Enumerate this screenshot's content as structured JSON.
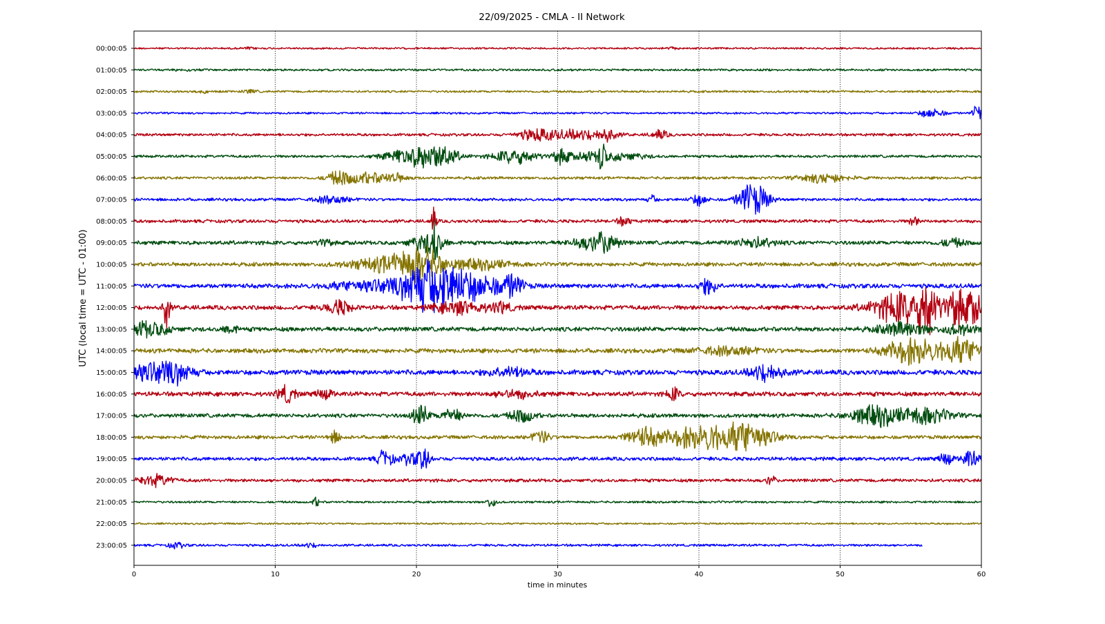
{
  "chart_data": {
    "type": "line",
    "title": "22/09/2025 - CMLA - II Network",
    "xlabel": "time in minutes",
    "ylabel": "UTC (local time = UTC - 01:00)",
    "xlim": [
      0,
      60
    ],
    "x_ticks": [
      "0",
      "10",
      "20",
      "30",
      "40",
      "50",
      "60"
    ],
    "x_tick_values": [
      0,
      10,
      20,
      30,
      40,
      50,
      60
    ],
    "grid": {
      "x": "dotted",
      "y": "off"
    },
    "series_colors": [
      "#b30010",
      "#004d0f",
      "#857400",
      "#0000ff"
    ],
    "rows": [
      {
        "label": "00:00:05",
        "amp": 0.1,
        "bursts": [
          [
            8.2,
            0.3,
            0.12
          ],
          [
            38,
            0.3,
            0.1
          ]
        ]
      },
      {
        "label": "01:00:05",
        "amp": 0.12,
        "bursts": [
          [
            3.5,
            0.5,
            0.1
          ]
        ]
      },
      {
        "label": "02:00:05",
        "amp": 0.12,
        "bursts": [
          [
            8.2,
            0.3,
            0.2
          ],
          [
            5,
            0.4,
            0.1
          ]
        ]
      },
      {
        "label": "03:00:05",
        "amp": 0.11,
        "bursts": [
          [
            56.5,
            0.6,
            0.5
          ],
          [
            59.7,
            0.2,
            1.1
          ]
        ]
      },
      {
        "label": "04:00:05",
        "amp": 0.15,
        "bursts": [
          [
            28.5,
            0.9,
            0.6
          ],
          [
            31.5,
            1.5,
            0.5
          ],
          [
            33.5,
            0.4,
            0.6
          ],
          [
            37.2,
            0.4,
            0.5
          ]
        ]
      },
      {
        "label": "05:00:05",
        "amp": 0.15,
        "bursts": [
          [
            19.5,
            1.2,
            0.8
          ],
          [
            21.5,
            1.0,
            1.1
          ],
          [
            27,
            1.0,
            0.8
          ],
          [
            30.3,
            0.5,
            0.8
          ],
          [
            32,
            0.4,
            0.5
          ],
          [
            33.1,
            0.2,
            1.8
          ],
          [
            34.5,
            1.2,
            0.4
          ]
        ]
      },
      {
        "label": "06:00:05",
        "amp": 0.15,
        "bursts": [
          [
            14.5,
            0.6,
            0.7
          ],
          [
            16.5,
            1.0,
            0.6
          ],
          [
            18.5,
            0.6,
            0.4
          ],
          [
            48.8,
            1.2,
            0.5
          ]
        ]
      },
      {
        "label": "07:00:05",
        "amp": 0.16,
        "bursts": [
          [
            14,
            0.8,
            0.4
          ],
          [
            36.7,
            0.2,
            0.4
          ],
          [
            40,
            0.4,
            0.6
          ],
          [
            43.6,
            0.6,
            1.6
          ],
          [
            44.5,
            0.5,
            0.7
          ]
        ]
      },
      {
        "label": "08:00:05",
        "amp": 0.18,
        "bursts": [
          [
            21.2,
            0.15,
            1.5
          ],
          [
            34.7,
            0.3,
            0.5
          ],
          [
            55.2,
            0.2,
            0.6
          ]
        ]
      },
      {
        "label": "09:00:05",
        "amp": 0.22,
        "bursts": [
          [
            20.8,
            0.8,
            1.0
          ],
          [
            21.3,
            0.2,
            2.0
          ],
          [
            13.5,
            0.3,
            0.5
          ],
          [
            32.5,
            1.0,
            0.7
          ],
          [
            33.5,
            0.5,
            0.8
          ],
          [
            44,
            1.0,
            0.5
          ],
          [
            58,
            0.6,
            0.4
          ]
        ]
      },
      {
        "label": "10:00:05",
        "amp": 0.22,
        "bursts": [
          [
            18.5,
            2.0,
            0.9
          ],
          [
            20.5,
            1.0,
            1.3
          ],
          [
            24.5,
            1.5,
            0.5
          ]
        ]
      },
      {
        "label": "11:00:05",
        "amp": 0.25,
        "bursts": [
          [
            21.8,
            1.4,
            2.0
          ],
          [
            20.2,
            1.0,
            1.3
          ],
          [
            24.5,
            1.5,
            1.0
          ],
          [
            26.8,
            0.5,
            1.0
          ],
          [
            40.7,
            0.4,
            0.9
          ],
          [
            17,
            2.0,
            0.6
          ]
        ]
      },
      {
        "label": "12:00:05",
        "amp": 0.25,
        "bursts": [
          [
            2.3,
            0.15,
            2.5
          ],
          [
            14.5,
            0.6,
            0.8
          ],
          [
            23,
            1.2,
            0.7
          ],
          [
            26,
            0.6,
            0.5
          ],
          [
            54.5,
            1.5,
            1.8
          ],
          [
            56.2,
            0.4,
            2.6
          ],
          [
            58.2,
            0.6,
            2.0
          ],
          [
            59.5,
            0.5,
            1.4
          ]
        ]
      },
      {
        "label": "13:00:05",
        "amp": 0.25,
        "bursts": [
          [
            1,
            1.0,
            0.8
          ],
          [
            6.8,
            0.3,
            0.6
          ],
          [
            54.5,
            1.2,
            0.7
          ],
          [
            58.5,
            0.8,
            0.5
          ]
        ]
      },
      {
        "label": "14:00:05",
        "amp": 0.25,
        "bursts": [
          [
            55,
            1.2,
            1.4
          ],
          [
            58.5,
            1.2,
            1.3
          ],
          [
            42,
            1.5,
            0.4
          ]
        ]
      },
      {
        "label": "15:00:05",
        "amp": 0.28,
        "bursts": [
          [
            1,
            1.2,
            1.0
          ],
          [
            3,
            0.8,
            0.9
          ],
          [
            44.8,
            0.8,
            0.9
          ],
          [
            26.5,
            1.0,
            0.5
          ]
        ]
      },
      {
        "label": "16:00:05",
        "amp": 0.25,
        "bursts": [
          [
            10.8,
            0.4,
            1.0
          ],
          [
            13.5,
            0.4,
            0.5
          ],
          [
            38.2,
            0.3,
            0.7
          ],
          [
            27,
            1.0,
            0.4
          ]
        ]
      },
      {
        "label": "17:00:05",
        "amp": 0.22,
        "bursts": [
          [
            20.3,
            0.4,
            1.1
          ],
          [
            22.5,
            0.5,
            0.7
          ],
          [
            27.5,
            0.6,
            0.7
          ],
          [
            52.5,
            1.2,
            1.1
          ],
          [
            56,
            1.2,
            0.9
          ]
        ]
      },
      {
        "label": "18:00:05",
        "amp": 0.2,
        "bursts": [
          [
            14.2,
            0.3,
            0.6
          ],
          [
            28.8,
            0.4,
            0.7
          ],
          [
            36.2,
            0.9,
            1.0
          ],
          [
            39.5,
            1.2,
            1.2
          ],
          [
            42.9,
            1.0,
            1.5
          ],
          [
            41,
            0.4,
            0.8
          ],
          [
            44.5,
            0.9,
            0.7
          ]
        ]
      },
      {
        "label": "19:00:05",
        "amp": 0.2,
        "bursts": [
          [
            17.8,
            0.4,
            0.9
          ],
          [
            19.5,
            0.4,
            0.6
          ],
          [
            20.5,
            0.3,
            1.2
          ],
          [
            57.5,
            0.3,
            0.7
          ],
          [
            59.2,
            0.4,
            0.9
          ]
        ]
      },
      {
        "label": "20:00:05",
        "amp": 0.18,
        "bursts": [
          [
            1.5,
            0.8,
            0.6
          ],
          [
            45.1,
            0.2,
            0.6
          ]
        ]
      },
      {
        "label": "21:00:05",
        "amp": 0.12,
        "bursts": [
          [
            12.9,
            0.2,
            0.5
          ],
          [
            25.3,
            0.2,
            0.7
          ]
        ]
      },
      {
        "label": "22:00:05",
        "amp": 0.1,
        "bursts": []
      },
      {
        "label": "23:00:05",
        "amp": 0.13,
        "bursts": [
          [
            3,
            0.4,
            0.3
          ],
          [
            12.5,
            0.4,
            0.2
          ]
        ],
        "end": 55.8
      }
    ]
  }
}
